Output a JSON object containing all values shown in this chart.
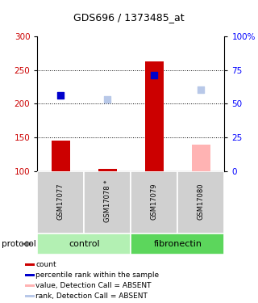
{
  "title": "GDS696 / 1373485_at",
  "samples": [
    "GSM17077",
    "GSM17078 *",
    "GSM17079",
    "GSM17080"
  ],
  "bar_values": [
    145,
    103,
    263,
    140
  ],
  "bar_colors": [
    "#cc0000",
    "#cc0000",
    "#cc0000",
    "#ffb3b3"
  ],
  "dot_values": [
    213,
    207,
    242,
    221
  ],
  "dot_colors": [
    "#0000cc",
    "#b8c8e8",
    "#0000cc",
    "#b8c8e8"
  ],
  "ylim": [
    100,
    300
  ],
  "y_left_ticks": [
    100,
    150,
    200,
    250,
    300
  ],
  "y_right_ticks": [
    0,
    25,
    50,
    75,
    100
  ],
  "y_right_labels": [
    "0",
    "25",
    "50",
    "75",
    "100%"
  ],
  "dotted_lines": [
    150,
    200,
    250
  ],
  "bar_bottom": 100,
  "group_colors": [
    "#b3f0b3",
    "#5cd65c"
  ],
  "legend_items": [
    {
      "label": "count",
      "color": "#cc0000"
    },
    {
      "label": "percentile rank within the sample",
      "color": "#0000cc"
    },
    {
      "label": "value, Detection Call = ABSENT",
      "color": "#ffb3b3"
    },
    {
      "label": "rank, Detection Call = ABSENT",
      "color": "#b8c8e8"
    }
  ],
  "bg_color_samples": "#d0d0d0",
  "bar_width": 0.4
}
